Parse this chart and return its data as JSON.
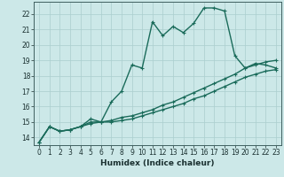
{
  "title": "",
  "xlabel": "Humidex (Indice chaleur)",
  "bg_color": "#cce8e8",
  "grid_color": "#aacece",
  "line_color": "#1a6b5a",
  "xlim": [
    -0.5,
    23.5
  ],
  "ylim": [
    13.5,
    22.8
  ],
  "yticks": [
    14,
    15,
    16,
    17,
    18,
    19,
    20,
    21,
    22
  ],
  "xticks": [
    0,
    1,
    2,
    3,
    4,
    5,
    6,
    7,
    8,
    9,
    10,
    11,
    12,
    13,
    14,
    15,
    16,
    17,
    18,
    19,
    20,
    21,
    22,
    23
  ],
  "line1_x": [
    0,
    1,
    2,
    3,
    4,
    5,
    6,
    7,
    8,
    9,
    10,
    11,
    12,
    13,
    14,
    15,
    16,
    17,
    18,
    19,
    20,
    21,
    22,
    23
  ],
  "line1_y": [
    13.7,
    14.7,
    14.4,
    14.5,
    14.7,
    15.2,
    15.0,
    16.3,
    17.0,
    18.7,
    18.5,
    21.5,
    20.6,
    21.2,
    20.8,
    21.4,
    22.4,
    22.4,
    22.2,
    19.3,
    18.5,
    18.8,
    18.7,
    18.5
  ],
  "line2_x": [
    0,
    1,
    2,
    3,
    4,
    5,
    6,
    7,
    8,
    9,
    10,
    11,
    12,
    13,
    14,
    15,
    16,
    17,
    18,
    19,
    20,
    21,
    22,
    23
  ],
  "line2_y": [
    13.7,
    14.7,
    14.4,
    14.5,
    14.7,
    15.0,
    15.0,
    15.1,
    15.3,
    15.4,
    15.6,
    15.8,
    16.1,
    16.3,
    16.6,
    16.9,
    17.2,
    17.5,
    17.8,
    18.1,
    18.5,
    18.7,
    18.9,
    19.0
  ],
  "line3_x": [
    0,
    1,
    2,
    3,
    4,
    5,
    6,
    7,
    8,
    9,
    10,
    11,
    12,
    13,
    14,
    15,
    16,
    17,
    18,
    19,
    20,
    21,
    22,
    23
  ],
  "line3_y": [
    13.7,
    14.7,
    14.4,
    14.5,
    14.7,
    14.9,
    15.0,
    15.0,
    15.1,
    15.2,
    15.4,
    15.6,
    15.8,
    16.0,
    16.2,
    16.5,
    16.7,
    17.0,
    17.3,
    17.6,
    17.9,
    18.1,
    18.3,
    18.4
  ],
  "marker_size": 3.5,
  "linewidth": 1.0,
  "label_fontsize": 6.5,
  "tick_fontsize": 5.5
}
